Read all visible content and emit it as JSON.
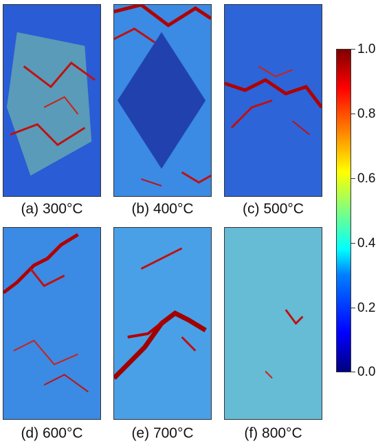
{
  "panels": [
    {
      "id": "a",
      "label": "(a) 300°C",
      "fill": "#4aa8e8"
    },
    {
      "id": "b",
      "label": "(b) 400°C",
      "fill": "#2a5cd6"
    },
    {
      "id": "c",
      "label": "(c) 500°C",
      "fill": "#3a7ee0"
    },
    {
      "id": "d",
      "label": "(d) 600°C",
      "fill": "#3b8ae4"
    },
    {
      "id": "e",
      "label": "(e) 700°C",
      "fill": "#4aa0e6"
    },
    {
      "id": "f",
      "label": "(f) 800°C",
      "fill": "#5ab0e0"
    }
  ],
  "colorbar": {
    "ticks": [
      "1.0",
      "0.8",
      "0.6",
      "0.4",
      "0.2",
      "0.0"
    ],
    "colors": [
      "#00007f",
      "#0000ff",
      "#007fff",
      "#00ffff",
      "#7fff7f",
      "#ffff00",
      "#ff7f00",
      "#ff0000",
      "#7f0000"
    ]
  }
}
